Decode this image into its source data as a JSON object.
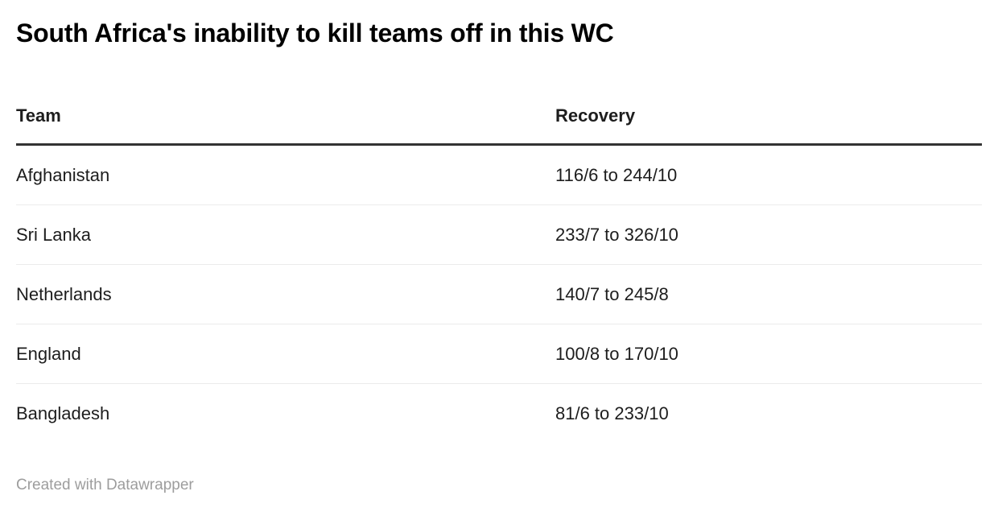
{
  "title": "South Africa's inability to kill teams off in this WC",
  "table": {
    "columns": [
      "Team",
      "Recovery"
    ],
    "rows": [
      {
        "team": "Afghanistan",
        "recovery": "116/6 to 244/10"
      },
      {
        "team": "Sri Lanka",
        "recovery": "233/7 to 326/10"
      },
      {
        "team": "Netherlands",
        "recovery": "140/7 to 245/8"
      },
      {
        "team": "England",
        "recovery": "100/8 to 170/10"
      },
      {
        "team": "Bangladesh",
        "recovery": "81/6 to 233/10"
      }
    ]
  },
  "footer": {
    "credit": "Created with Datawrapper"
  },
  "colors": {
    "title_text": "#000000",
    "body_text": "#1d1d1d",
    "header_rule": "#333333",
    "row_rule": "#ebebeb",
    "credit_text": "#9d9d9d",
    "background": "#ffffff"
  },
  "chart_data": {
    "type": "table",
    "title": "South Africa's inability to kill teams off in this WC",
    "columns": [
      "Team",
      "Recovery"
    ],
    "rows": [
      [
        "Afghanistan",
        "116/6 to 244/10"
      ],
      [
        "Sri Lanka",
        "233/7 to 326/10"
      ],
      [
        "Netherlands",
        "140/7 to 245/8"
      ],
      [
        "England",
        "100/8 to 170/10"
      ],
      [
        "Bangladesh",
        "81/6 to 233/10"
      ]
    ],
    "credit": "Created with Datawrapper",
    "layout": {
      "grid": "off",
      "header_rule": "thick",
      "row_rules": "light"
    }
  }
}
